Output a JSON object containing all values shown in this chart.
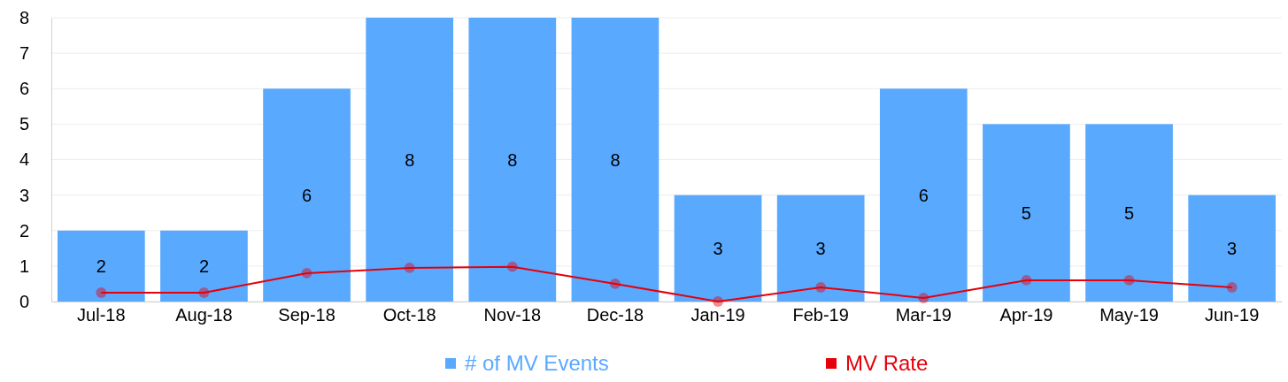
{
  "chart_data": {
    "type": "bar",
    "categories": [
      "Jul-18",
      "Aug-18",
      "Sep-18",
      "Oct-18",
      "Nov-18",
      "Dec-18",
      "Jan-19",
      "Feb-19",
      "Mar-19",
      "Apr-19",
      "May-19",
      "Jun-19"
    ],
    "series": [
      {
        "name": "# of MV Events",
        "color": "#59a9ff",
        "values": [
          2,
          2,
          6,
          8,
          8,
          8,
          3,
          3,
          6,
          5,
          5,
          3
        ],
        "value_labels": [
          "2",
          "2",
          "6",
          "8",
          "8",
          "8",
          "3",
          "3",
          "6",
          "5",
          "5",
          "3"
        ]
      },
      {
        "name": "MV Rate",
        "type": "line",
        "color": "#e5000a",
        "values": [
          0.25,
          0.25,
          0.8,
          0.95,
          0.98,
          0.5,
          0,
          0.4,
          0.1,
          0.6,
          0.6,
          0.4
        ]
      }
    ],
    "ylim": [
      0,
      8
    ],
    "yticks": [
      0,
      1,
      2,
      3,
      4,
      5,
      6,
      7,
      8
    ],
    "grid": "y",
    "legend": "bottom",
    "marker": "circle"
  }
}
